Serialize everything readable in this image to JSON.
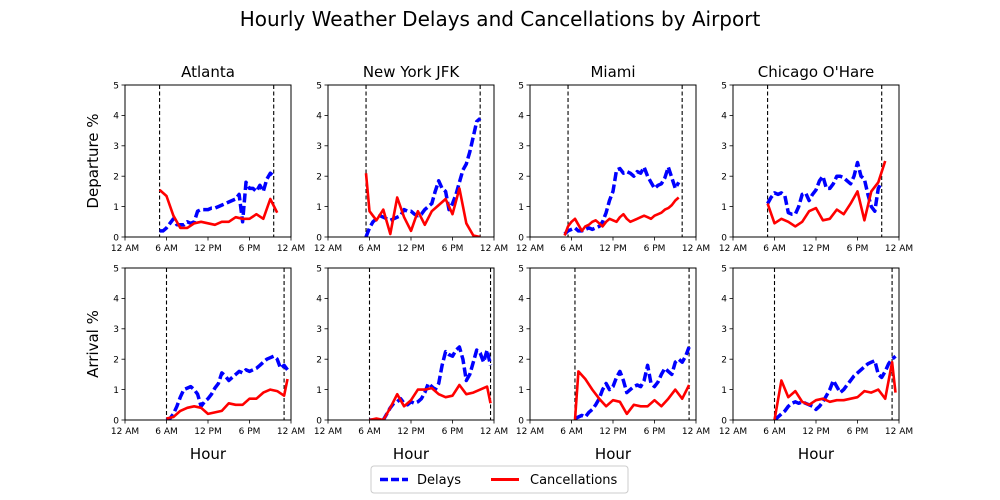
{
  "title": "Hourly Weather Delays and Cancellations by Airport",
  "legend": {
    "delays_label": "Delays",
    "cancellations_label": "Cancellations",
    "placement": "bottom-center"
  },
  "colors": {
    "delays": "#0000ff",
    "cancellations": "#ff0000",
    "vline": "#000000"
  },
  "chart_data": {
    "type": "line",
    "rows": [
      "Departure",
      "Arrival"
    ],
    "ylabels": [
      "Departure %",
      "Arrival %"
    ],
    "xlabel": "Hour",
    "xlim": [
      0,
      24
    ],
    "ylim": [
      0,
      5
    ],
    "xticks": [
      0,
      6,
      12,
      18,
      24
    ],
    "xticklabels": [
      "12 AM",
      "6 AM",
      "12 PM",
      "6 PM",
      "12 AM"
    ],
    "yticks": [
      0,
      1,
      2,
      3,
      4,
      5
    ],
    "yticklabels": [
      "0",
      "1",
      "2",
      "3",
      "4",
      "5"
    ],
    "airports": [
      "Atlanta",
      "New York JFK",
      "Miami",
      "Chicago O'Hare"
    ],
    "panels": [
      {
        "airport": "Atlanta",
        "row": "Departure",
        "vlines": [
          5,
          21.5
        ],
        "delays": {
          "x": [
            5,
            5.5,
            6,
            6.5,
            7,
            7.5,
            8,
            8.5,
            9,
            9.5,
            10,
            10.5,
            11,
            11.5,
            12,
            12.5,
            13,
            13.5,
            14,
            14.5,
            15,
            15.5,
            16,
            16.5,
            17,
            17.5,
            18,
            18.5,
            19,
            19.5,
            20,
            20.5,
            21,
            21.5
          ],
          "y": [
            0.2,
            0.2,
            0.3,
            0.45,
            0.6,
            0.4,
            0.4,
            0.4,
            0.5,
            0.45,
            0.5,
            0.85,
            0.9,
            0.9,
            0.9,
            0.95,
            0.95,
            1.0,
            1.05,
            1.1,
            1.15,
            1.2,
            1.25,
            1.4,
            0.5,
            1.8,
            1.6,
            1.6,
            1.5,
            1.7,
            1.5,
            1.9,
            2.1,
            2.0
          ]
        },
        "cancellations": {
          "x": [
            5,
            6,
            7,
            8,
            9,
            10,
            11,
            12,
            13,
            14,
            15,
            16,
            17,
            18,
            19,
            20,
            21,
            22
          ],
          "y": [
            1.55,
            1.35,
            0.7,
            0.3,
            0.3,
            0.45,
            0.5,
            0.45,
            0.4,
            0.5,
            0.5,
            0.65,
            0.6,
            0.6,
            0.75,
            0.6,
            1.25,
            0.8
          ]
        }
      },
      {
        "airport": "New York JFK",
        "row": "Departure",
        "vlines": [
          5.5,
          22
        ],
        "delays": {
          "x": [
            5.5,
            6,
            6.5,
            7,
            7.5,
            8,
            8.5,
            9,
            9.5,
            10,
            10.5,
            11,
            11.5,
            12,
            12.5,
            13,
            13.5,
            14,
            14.5,
            15,
            15.5,
            16,
            16.5,
            17,
            17.5,
            18,
            18.5,
            19,
            19.5,
            20,
            20.5,
            21,
            21.5,
            22
          ],
          "y": [
            0,
            0.3,
            0.5,
            0.6,
            0.7,
            0.65,
            0.6,
            0.55,
            0.6,
            0.65,
            0.7,
            0.9,
            0.85,
            0.85,
            0.75,
            0.7,
            0.75,
            0.9,
            1.0,
            1.1,
            1.5,
            1.85,
            1.6,
            1.5,
            0.9,
            1.1,
            1.4,
            1.8,
            2.2,
            2.4,
            2.8,
            3.3,
            3.8,
            3.9
          ]
        },
        "cancellations": {
          "x": [
            5.5,
            6,
            7,
            8,
            9,
            10,
            11,
            12,
            13,
            14,
            15,
            16,
            17,
            18,
            19,
            20,
            21,
            22
          ],
          "y": [
            2.1,
            0.85,
            0.55,
            0.9,
            0.1,
            1.3,
            0.65,
            0.2,
            0.85,
            0.4,
            0.85,
            1.05,
            1.25,
            0.75,
            1.6,
            0.45,
            0.05,
            0.0
          ]
        }
      },
      {
        "airport": "Miami",
        "row": "Departure",
        "vlines": [
          5.5,
          22
        ],
        "delays": {
          "x": [
            5,
            5.5,
            6,
            6.5,
            7,
            7.5,
            8,
            8.5,
            9,
            9.5,
            10,
            10.5,
            11,
            11.5,
            12,
            12.5,
            13,
            13.5,
            14,
            14.5,
            15,
            15.5,
            16,
            16.5,
            17,
            17.5,
            18,
            18.5,
            19,
            19.5,
            20,
            20.5,
            21,
            21.5
          ],
          "y": [
            0.1,
            0.2,
            0.25,
            0.3,
            0.2,
            0.2,
            0.25,
            0.3,
            0.25,
            0.3,
            0.35,
            0.5,
            0.8,
            1.2,
            1.5,
            2.2,
            2.25,
            2.1,
            2.15,
            2.1,
            2.0,
            2.15,
            2.1,
            2.3,
            2.0,
            1.8,
            1.6,
            1.7,
            1.75,
            1.95,
            2.3,
            1.95,
            1.6,
            1.8
          ]
        },
        "cancellations": {
          "x": [
            5,
            5.5,
            6,
            6.5,
            7,
            7.5,
            8,
            8.5,
            9,
            9.5,
            10,
            10.5,
            11,
            11.5,
            12,
            12.5,
            13,
            13.5,
            14,
            14.5,
            15,
            15.5,
            16,
            16.5,
            17,
            17.5,
            18,
            18.5,
            19,
            19.5,
            20,
            20.5,
            21,
            21.5
          ],
          "y": [
            0.05,
            0.35,
            0.5,
            0.6,
            0.4,
            0.2,
            0.35,
            0.4,
            0.5,
            0.55,
            0.45,
            0.35,
            0.5,
            0.6,
            0.55,
            0.5,
            0.65,
            0.75,
            0.6,
            0.5,
            0.55,
            0.6,
            0.65,
            0.7,
            0.65,
            0.6,
            0.7,
            0.75,
            0.8,
            0.9,
            0.95,
            1.05,
            1.2,
            1.3
          ]
        }
      },
      {
        "airport": "Chicago O'Hare",
        "row": "Departure",
        "vlines": [
          5,
          21.5
        ],
        "delays": {
          "x": [
            5,
            5.5,
            6,
            6.5,
            7,
            7.5,
            8,
            8.5,
            9,
            9.5,
            10,
            10.5,
            11,
            11.5,
            12,
            12.5,
            13,
            13.5,
            14,
            14.5,
            15,
            15.5,
            16,
            16.5,
            17,
            17.5,
            18,
            18.5,
            19,
            19.5,
            20,
            20.5,
            21,
            21.5
          ],
          "y": [
            1.1,
            1.3,
            1.45,
            1.4,
            1.45,
            1.35,
            0.8,
            0.75,
            0.75,
            1.0,
            1.4,
            1.45,
            1.2,
            1.4,
            1.55,
            1.85,
            2.0,
            1.6,
            1.6,
            1.75,
            2.0,
            2.0,
            1.95,
            1.85,
            1.75,
            2.0,
            2.45,
            2.0,
            1.9,
            1.4,
            1.0,
            0.85,
            1.6,
            1.8
          ]
        },
        "cancellations": {
          "x": [
            5,
            6,
            7,
            8,
            9,
            10,
            11,
            12,
            13,
            14,
            15,
            16,
            17,
            18,
            19,
            20,
            21,
            22
          ],
          "y": [
            1.1,
            0.45,
            0.6,
            0.5,
            0.35,
            0.5,
            0.85,
            0.95,
            0.55,
            0.6,
            0.9,
            0.75,
            1.1,
            1.5,
            0.55,
            1.5,
            1.8,
            2.5
          ]
        }
      },
      {
        "airport": "Atlanta",
        "row": "Arrival",
        "vlines": [
          6,
          23
        ],
        "delays": {
          "x": [
            6,
            6.5,
            7,
            7.5,
            8,
            8.5,
            9,
            9.5,
            10,
            10.5,
            11,
            11.5,
            12,
            12.5,
            13,
            13.5,
            14,
            14.5,
            15,
            15.5,
            16,
            16.5,
            17,
            17.5,
            18,
            18.5,
            19,
            19.5,
            20,
            20.5,
            21,
            21.5,
            22,
            22.5,
            23,
            23.5
          ],
          "y": [
            0,
            0.05,
            0.2,
            0.45,
            0.75,
            1.0,
            1.05,
            1.1,
            1.0,
            0.85,
            0.45,
            0.6,
            0.7,
            0.85,
            1.05,
            1.2,
            1.55,
            1.45,
            1.3,
            1.4,
            1.5,
            1.6,
            1.55,
            1.65,
            1.6,
            1.65,
            1.7,
            1.8,
            1.9,
            2.0,
            2.05,
            2.1,
            2.0,
            1.7,
            1.8,
            1.65
          ]
        },
        "cancellations": {
          "x": [
            6,
            7,
            8,
            9,
            10,
            11,
            12,
            13,
            14,
            15,
            16,
            17,
            18,
            19,
            20,
            21,
            22,
            23,
            23.5
          ],
          "y": [
            0.05,
            0.1,
            0.3,
            0.4,
            0.45,
            0.4,
            0.2,
            0.25,
            0.3,
            0.55,
            0.5,
            0.5,
            0.7,
            0.7,
            0.9,
            1.0,
            0.95,
            0.8,
            1.35
          ]
        }
      },
      {
        "airport": "New York JFK",
        "row": "Arrival",
        "vlines": [
          6,
          23.5
        ],
        "delays": {
          "x": [
            6,
            7,
            8,
            8.5,
            9,
            9.5,
            10,
            10.5,
            11,
            11.5,
            12,
            12.5,
            13,
            13.5,
            14,
            14.5,
            15,
            15.5,
            16,
            16.5,
            17,
            17.5,
            18,
            18.5,
            19,
            19.5,
            20,
            20.5,
            21,
            21.5,
            22,
            22.5,
            23,
            23.5
          ],
          "y": [
            0,
            0,
            0,
            0.2,
            0.4,
            0.55,
            0.6,
            0.7,
            0.55,
            0.5,
            0.6,
            0.55,
            0.6,
            0.7,
            0.9,
            1.2,
            1.1,
            1.0,
            1.2,
            1.8,
            2.25,
            2.15,
            2.1,
            2.3,
            2.4,
            2.0,
            1.3,
            1.5,
            1.9,
            2.3,
            2.2,
            1.9,
            2.3,
            1.8
          ]
        },
        "cancellations": {
          "x": [
            6,
            7,
            8,
            9,
            10,
            11,
            12,
            13,
            14,
            15,
            16,
            17,
            18,
            19,
            20,
            21,
            22,
            23,
            23.5
          ],
          "y": [
            0.0,
            0.05,
            0.0,
            0.4,
            0.85,
            0.45,
            0.65,
            1.0,
            1.0,
            1.05,
            0.85,
            0.75,
            0.8,
            1.15,
            0.85,
            0.9,
            1.0,
            1.1,
            0.55
          ]
        }
      },
      {
        "airport": "Miami",
        "row": "Arrival",
        "vlines": [
          6.5,
          23
        ],
        "delays": {
          "x": [
            6.5,
            7,
            7.5,
            8,
            8.5,
            9,
            9.5,
            10,
            10.5,
            11,
            11.5,
            12,
            12.5,
            13,
            13.5,
            14,
            14.5,
            15,
            15.5,
            16,
            16.5,
            17,
            17.5,
            18,
            18.5,
            19,
            19.5,
            20,
            20.5,
            21,
            21.5,
            22,
            22.5,
            23
          ],
          "y": [
            0.05,
            0.1,
            0.15,
            0.1,
            0.25,
            0.35,
            0.5,
            0.7,
            1.0,
            1.2,
            1.0,
            1.1,
            1.4,
            1.6,
            1.3,
            0.9,
            1.0,
            1.1,
            1.15,
            1.1,
            1.3,
            1.8,
            1.2,
            1.1,
            1.25,
            1.5,
            1.7,
            1.6,
            1.5,
            1.9,
            2.0,
            1.9,
            2.1,
            2.4
          ]
        },
        "cancellations": {
          "x": [
            6.5,
            7,
            8,
            9,
            10,
            11,
            12,
            13,
            14,
            15,
            16,
            17,
            18,
            19,
            20,
            21,
            22,
            23
          ],
          "y": [
            0.0,
            1.6,
            1.35,
            1.0,
            0.7,
            0.45,
            0.65,
            0.6,
            0.2,
            0.5,
            0.45,
            0.45,
            0.65,
            0.45,
            0.7,
            1.0,
            0.7,
            1.15
          ]
        }
      },
      {
        "airport": "Chicago O'Hare",
        "row": "Arrival",
        "vlines": [
          6,
          23
        ],
        "delays": {
          "x": [
            6,
            6.5,
            7,
            7.5,
            8,
            8.5,
            9,
            9.5,
            10,
            10.5,
            11,
            11.5,
            12,
            12.5,
            13,
            13.5,
            14,
            14.5,
            15,
            15.5,
            16,
            16.5,
            17,
            17.5,
            18,
            18.5,
            19,
            19.5,
            20,
            20.5,
            21,
            21.5,
            22,
            22.5,
            23,
            23.5
          ],
          "y": [
            0,
            0.1,
            0.2,
            0.3,
            0.45,
            0.55,
            0.6,
            0.55,
            0.6,
            0.55,
            0.5,
            0.45,
            0.35,
            0.45,
            0.6,
            0.8,
            1.0,
            1.3,
            1.1,
            0.9,
            1.0,
            1.15,
            1.3,
            1.45,
            1.55,
            1.65,
            1.75,
            1.85,
            1.9,
            1.95,
            1.5,
            1.4,
            1.6,
            1.85,
            2.0,
            2.1
          ]
        },
        "cancellations": {
          "x": [
            6,
            7,
            8,
            9,
            10,
            11,
            12,
            13,
            14,
            15,
            16,
            17,
            18,
            19,
            20,
            21,
            22,
            23,
            23.5
          ],
          "y": [
            0.0,
            1.3,
            0.75,
            0.95,
            0.6,
            0.5,
            0.65,
            0.7,
            0.6,
            0.65,
            0.65,
            0.7,
            0.75,
            0.95,
            0.9,
            1.0,
            0.7,
            1.9,
            0.9
          ]
        }
      }
    ]
  }
}
